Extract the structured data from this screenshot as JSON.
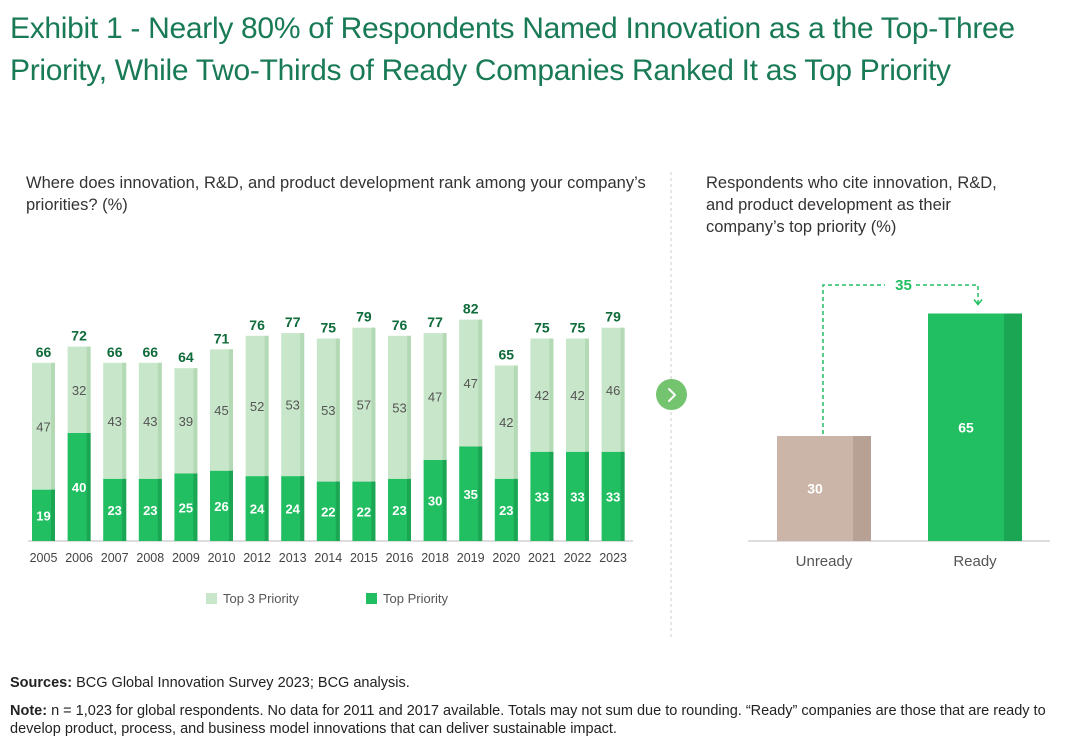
{
  "title": "Exhibit 1 - Nearly 80% of Respondents Named Innovation as a the Top-Three Priority, While Two-Thirds of Ready Companies Ranked It as Top Priority",
  "colors": {
    "title_green": "#197a56",
    "top3_light_green": "#c8e6c9",
    "top_priority_green": "#21bf61",
    "unready_bar": "#cbb5a9",
    "label_dark_green": "#0e6b3a"
  },
  "chart_data": [
    {
      "type": "bar",
      "stacked": true,
      "title": "Where does innovation, R&D, and product development rank among your company’s priorities? (%)",
      "categories": [
        "2005",
        "2006",
        "2007",
        "2008",
        "2009",
        "2010",
        "2012",
        "2013",
        "2014",
        "2015",
        "2016",
        "2018",
        "2019",
        "2020",
        "2021",
        "2022",
        "2023"
      ],
      "series": [
        {
          "name": "Top Priority",
          "values": [
            19,
            40,
            23,
            23,
            25,
            26,
            24,
            24,
            22,
            22,
            23,
            30,
            35,
            23,
            33,
            33,
            33
          ]
        },
        {
          "name": "Top 3 Priority",
          "values": [
            47,
            32,
            43,
            43,
            39,
            45,
            52,
            53,
            53,
            57,
            53,
            47,
            47,
            42,
            42,
            42,
            46
          ]
        }
      ],
      "totals": [
        66,
        72,
        66,
        66,
        64,
        71,
        76,
        77,
        75,
        79,
        76,
        77,
        82,
        65,
        75,
        75,
        79
      ],
      "ylim": [
        0,
        100
      ],
      "legend": "bottom",
      "grid": false
    },
    {
      "type": "bar",
      "title": "Respondents who cite innovation, R&D, and product development as their company’s top priority (%)",
      "categories": [
        "Unready",
        "Ready"
      ],
      "values": [
        30,
        65
      ],
      "annotation": "35",
      "ylim": [
        0,
        100
      ],
      "grid": false
    }
  ],
  "footnotes": {
    "sources_label": "Sources:",
    "sources_text": " BCG Global Innovation Survey 2023; BCG analysis.",
    "note_label": "Note:",
    "note_text": " n = 1,023 for global respondents. No data for 2011 and 2017 available. Totals may not sum due to rounding. “Ready” companies are those that are ready to develop product, process, and business model innovations that can deliver sustainable impact."
  },
  "icons": {
    "next": "chevron-right-icon"
  }
}
